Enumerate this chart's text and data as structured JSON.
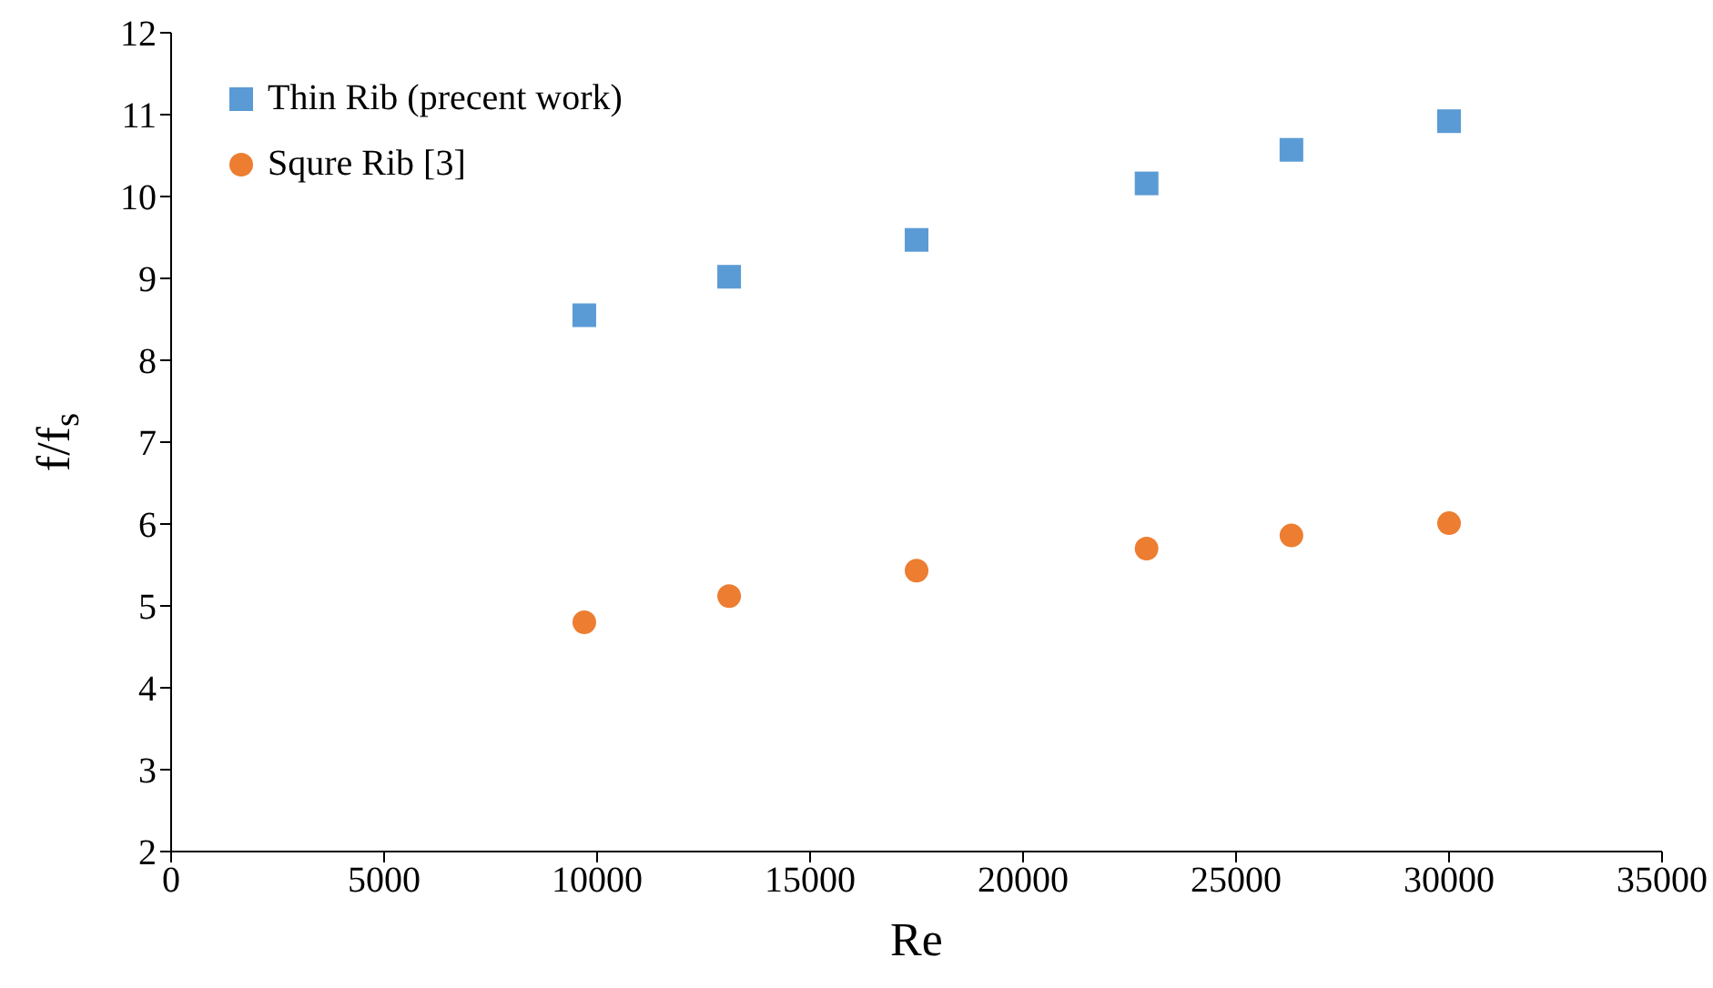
{
  "chart_data": {
    "type": "scatter",
    "xlabel": "Re",
    "ylabel": "f/f$_{s}$",
    "xlim": [
      0,
      35000
    ],
    "xticks": [
      0,
      5000,
      10000,
      15000,
      20000,
      25000,
      30000,
      35000
    ],
    "ylim": [
      2,
      12
    ],
    "yticks": [
      2,
      3,
      4,
      5,
      6,
      7,
      8,
      9,
      10,
      11,
      12
    ],
    "grid": false,
    "legend": "top left",
    "x": [
      9700,
      13100,
      17500,
      22900,
      26300,
      30000
    ],
    "series": [
      {
        "name": "Thin Rib (precent work)",
        "color": "#5b9bd5",
        "marker": "square",
        "values": [
          8.55,
          9.02,
          9.47,
          10.16,
          10.57,
          10.92
        ]
      },
      {
        "name": "Squre Rib [3]",
        "color": "#ed7d31",
        "marker": "circle",
        "values": [
          4.8,
          5.12,
          5.43,
          5.7,
          5.86,
          6.01
        ]
      }
    ]
  }
}
